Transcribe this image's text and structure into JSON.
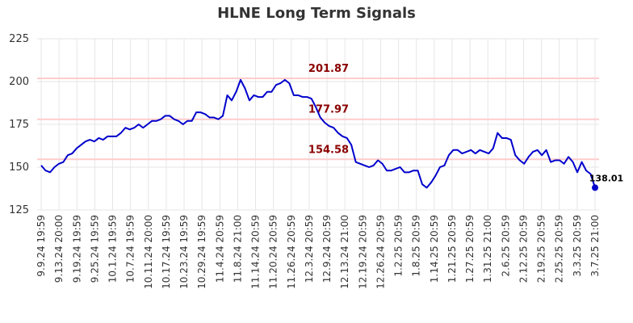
{
  "chart_data": {
    "type": "line",
    "title": "HLNE Long Term Signals",
    "x_ticks": [
      "9.9.24 19:59",
      "9.13.24 20:00",
      "9.19.24 19:59",
      "9.25.24 19:59",
      "10.1.24 19:59",
      "10.7.24 19:59",
      "10.11.24 20:00",
      "10.17.24 19:59",
      "10.23.24 19:59",
      "10.29.24 19:59",
      "11.4.24 20:59",
      "11.8.24 21:00",
      "11.14.24 20:59",
      "11.20.24 20:59",
      "11.26.24 20:59",
      "12.3.24 20:59",
      "12.9.24 20:59",
      "12.13.24 21:00",
      "12.19.24 20:59",
      "12.26.24 20:59",
      "1.2.25 20:59",
      "1.8.25 20:59",
      "1.14.25 20:59",
      "1.21.25 20:59",
      "1.27.25 20:59",
      "1.31.25 21:00",
      "2.6.25 20:59",
      "2.12.25 20:59",
      "2.19.25 20:59",
      "2.25.25 20:59",
      "3.3.25 20:59",
      "3.7.25 21:00"
    ],
    "y_ticks": [
      125,
      150,
      175,
      200,
      225
    ],
    "ylim": [
      125,
      225
    ],
    "series": [
      {
        "color": "#0000cc",
        "values": [
          151,
          148,
          147,
          150,
          152,
          153,
          157,
          158,
          161,
          163,
          165,
          166,
          165,
          167,
          166,
          168,
          168,
          168,
          170,
          173,
          172,
          173,
          175,
          173,
          175,
          177,
          177,
          178,
          180,
          180,
          178,
          177,
          175,
          177,
          177,
          182,
          182,
          181,
          179,
          179,
          178,
          180,
          192,
          189,
          194,
          201,
          196,
          189,
          192,
          191,
          191,
          194,
          194,
          198,
          199,
          201,
          199,
          192,
          192,
          191,
          191,
          190,
          185,
          179,
          176,
          174,
          173,
          170,
          168,
          167,
          163,
          153,
          152,
          151,
          150,
          151,
          154,
          152,
          148,
          148,
          149,
          150,
          147,
          147,
          148,
          148,
          140,
          138,
          141,
          145,
          150,
          151,
          157,
          160,
          160,
          158,
          159,
          160,
          158,
          160,
          159,
          158,
          161,
          170,
          167,
          167,
          166,
          157,
          154,
          152,
          156,
          159,
          160,
          157,
          160,
          153,
          154,
          154,
          152,
          156,
          153,
          147,
          153,
          148,
          146,
          138.01
        ]
      }
    ],
    "levels": [
      {
        "value": 201.87,
        "label": "201.87"
      },
      {
        "value": 177.97,
        "label": "177.97"
      },
      {
        "value": 154.58,
        "label": "154.58"
      }
    ],
    "last_point": {
      "value": 138.01,
      "label": "138.01"
    },
    "grid": true,
    "colors": {
      "line": "#0000cc",
      "level_line": "#ffcccc",
      "level_text": "#8b0000",
      "grid": "#e6e6e6",
      "axis_text": "#333333"
    }
  }
}
